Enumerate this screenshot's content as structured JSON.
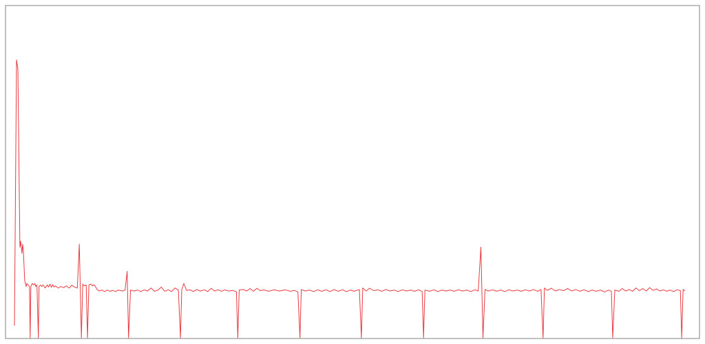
{
  "chart_data": {
    "type": "line",
    "title": "",
    "xlabel": "",
    "ylabel": "",
    "grid": false,
    "legend": false,
    "x_range": [
      0,
      1000
    ],
    "ylim": [
      0,
      100
    ],
    "series": [
      {
        "color": "#e8393f",
        "points": [
          [
            0,
            4
          ],
          [
            3,
            92
          ],
          [
            5,
            89
          ],
          [
            8,
            30
          ],
          [
            9,
            32
          ],
          [
            11,
            28
          ],
          [
            12,
            31
          ],
          [
            13,
            29
          ],
          [
            14,
            24
          ],
          [
            15,
            19
          ],
          [
            17,
            17
          ],
          [
            18,
            18
          ],
          [
            20,
            17.5
          ],
          [
            22,
            17
          ],
          [
            23,
            0
          ],
          [
            24,
            17
          ],
          [
            26,
            18
          ],
          [
            28,
            17.5
          ],
          [
            30,
            18
          ],
          [
            31,
            17
          ],
          [
            33,
            17.5
          ],
          [
            35,
            0
          ],
          [
            36,
            17
          ],
          [
            38,
            17.5
          ],
          [
            40,
            17
          ],
          [
            42,
            17.5
          ],
          [
            45,
            16.5
          ],
          [
            48,
            17.5
          ],
          [
            50,
            16.8
          ],
          [
            52,
            17.8
          ],
          [
            54,
            16.7
          ],
          [
            56,
            17.6
          ],
          [
            58,
            16.8
          ],
          [
            60,
            17.2
          ],
          [
            64,
            16.5
          ],
          [
            68,
            17
          ],
          [
            72,
            16.6
          ],
          [
            76,
            17.2
          ],
          [
            80,
            16.5
          ],
          [
            84,
            17.4
          ],
          [
            88,
            16.8
          ],
          [
            92,
            16.5
          ],
          [
            95,
            31
          ],
          [
            98,
            0
          ],
          [
            100,
            17.8
          ],
          [
            102,
            17.2
          ],
          [
            105,
            17.5
          ],
          [
            107,
            0
          ],
          [
            109,
            17.5
          ],
          [
            112,
            17.8
          ],
          [
            114,
            17.2
          ],
          [
            116,
            17.6
          ],
          [
            118,
            17.2
          ],
          [
            121,
            16
          ],
          [
            124,
            15.5
          ],
          [
            128,
            15.8
          ],
          [
            132,
            15.3
          ],
          [
            136,
            15.8
          ],
          [
            140,
            15.4
          ],
          [
            144,
            15.7
          ],
          [
            148,
            15.3
          ],
          [
            152,
            15.8
          ],
          [
            158,
            15.5
          ],
          [
            162,
            15.8
          ],
          [
            165,
            22
          ],
          [
            167,
            0
          ],
          [
            170,
            15.8
          ],
          [
            175,
            15.5
          ],
          [
            180,
            15.8
          ],
          [
            185,
            15.3
          ],
          [
            190,
            15.9
          ],
          [
            195,
            15.5
          ],
          [
            200,
            16.5
          ],
          [
            205,
            15.4
          ],
          [
            210,
            15.8
          ],
          [
            215,
            16.8
          ],
          [
            220,
            15.4
          ],
          [
            225,
            15.9
          ],
          [
            230,
            15.3
          ],
          [
            235,
            16.5
          ],
          [
            240,
            15.8
          ],
          [
            243,
            0
          ],
          [
            245,
            16
          ],
          [
            248,
            18
          ],
          [
            252,
            15.7
          ],
          [
            257,
            15.9
          ],
          [
            262,
            15.3
          ],
          [
            267,
            16
          ],
          [
            272,
            15.5
          ],
          [
            278,
            15.9
          ],
          [
            283,
            15.3
          ],
          [
            288,
            16.4
          ],
          [
            293,
            15.5
          ],
          [
            298,
            15.9
          ],
          [
            303,
            15.4
          ],
          [
            308,
            15.9
          ],
          [
            313,
            15.5
          ],
          [
            320,
            15.7
          ],
          [
            325,
            15.2
          ],
          [
            327,
            0
          ],
          [
            329,
            15.8
          ],
          [
            335,
            16
          ],
          [
            340,
            15.5
          ],
          [
            345,
            16.3
          ],
          [
            350,
            15.4
          ],
          [
            355,
            16.4
          ],
          [
            360,
            15.6
          ],
          [
            365,
            15.9
          ],
          [
            372,
            15.4
          ],
          [
            380,
            15.9
          ],
          [
            388,
            15.5
          ],
          [
            396,
            15.9
          ],
          [
            404,
            15.4
          ],
          [
            410,
            15.7
          ],
          [
            415,
            15.2
          ],
          [
            418,
            0
          ],
          [
            420,
            16
          ],
          [
            426,
            15.5
          ],
          [
            432,
            15.8
          ],
          [
            438,
            15.3
          ],
          [
            444,
            15.9
          ],
          [
            450,
            15.4
          ],
          [
            456,
            15.9
          ],
          [
            462,
            15.3
          ],
          [
            468,
            16
          ],
          [
            474,
            15.4
          ],
          [
            480,
            15.9
          ],
          [
            486,
            15.3
          ],
          [
            492,
            15.8
          ],
          [
            497,
            15.4
          ],
          [
            505,
            16
          ],
          [
            508,
            0
          ],
          [
            510,
            16.5
          ],
          [
            515,
            15.5
          ],
          [
            520,
            16.4
          ],
          [
            526,
            15.6
          ],
          [
            532,
            15.9
          ],
          [
            538,
            15.4
          ],
          [
            544,
            16
          ],
          [
            550,
            15.5
          ],
          [
            556,
            15.8
          ],
          [
            562,
            15.3
          ],
          [
            568,
            15.9
          ],
          [
            574,
            15.5
          ],
          [
            580,
            15.8
          ],
          [
            586,
            15.4
          ],
          [
            592,
            15.9
          ],
          [
            597,
            15.3
          ],
          [
            599,
            0
          ],
          [
            601,
            15.8
          ],
          [
            608,
            15.4
          ],
          [
            614,
            15.9
          ],
          [
            620,
            15.3
          ],
          [
            626,
            15.8
          ],
          [
            632,
            15.5
          ],
          [
            638,
            15.8
          ],
          [
            644,
            15.4
          ],
          [
            650,
            15.9
          ],
          [
            656,
            15.5
          ],
          [
            662,
            15.8
          ],
          [
            668,
            15.3
          ],
          [
            674,
            15.9
          ],
          [
            679,
            15.5
          ],
          [
            683,
            30
          ],
          [
            686,
            0
          ],
          [
            689,
            16
          ],
          [
            694,
            15.5
          ],
          [
            700,
            15.9
          ],
          [
            706,
            15.4
          ],
          [
            712,
            15.8
          ],
          [
            718,
            15.3
          ],
          [
            724,
            15.9
          ],
          [
            730,
            15.5
          ],
          [
            736,
            15.8
          ],
          [
            742,
            15.4
          ],
          [
            748,
            15.9
          ],
          [
            754,
            15.5
          ],
          [
            760,
            16
          ],
          [
            766,
            15.4
          ],
          [
            771,
            16
          ],
          [
            774,
            0
          ],
          [
            776,
            16.5
          ],
          [
            780,
            15.7
          ],
          [
            786,
            16.4
          ],
          [
            792,
            15.5
          ],
          [
            798,
            16
          ],
          [
            804,
            15.6
          ],
          [
            810,
            16.3
          ],
          [
            816,
            15.5
          ],
          [
            822,
            16
          ],
          [
            828,
            15.4
          ],
          [
            834,
            15.9
          ],
          [
            840,
            15.3
          ],
          [
            846,
            15.8
          ],
          [
            852,
            15.4
          ],
          [
            858,
            15.8
          ],
          [
            864,
            15.2
          ],
          [
            870,
            15.8
          ],
          [
            874,
            15.4
          ],
          [
            876,
            0
          ],
          [
            879,
            15.8
          ],
          [
            885,
            15.4
          ],
          [
            890,
            16.3
          ],
          [
            895,
            15.5
          ],
          [
            900,
            16
          ],
          [
            905,
            15.4
          ],
          [
            910,
            16.5
          ],
          [
            915,
            15.6
          ],
          [
            920,
            16.3
          ],
          [
            925,
            15.5
          ],
          [
            930,
            16.6
          ],
          [
            935,
            15.7
          ],
          [
            940,
            16.2
          ],
          [
            945,
            15.5
          ],
          [
            950,
            15.9
          ],
          [
            955,
            15.4
          ],
          [
            960,
            15.8
          ],
          [
            965,
            15.3
          ],
          [
            970,
            15.9
          ],
          [
            975,
            15.6
          ],
          [
            977,
            0
          ],
          [
            979,
            16
          ],
          [
            982,
            15.5
          ]
        ]
      }
    ]
  }
}
